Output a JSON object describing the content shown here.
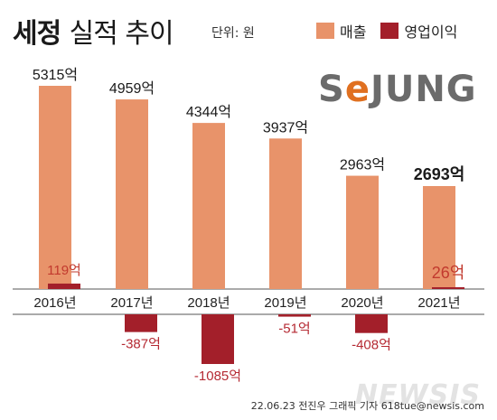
{
  "header": {
    "title_bold": "세정",
    "title_light": "실적 추이",
    "unit": "단위: 원"
  },
  "legend": [
    {
      "name": "매출",
      "color": "#e8936a"
    },
    {
      "name": "영업이익",
      "color": "#a31f2a"
    }
  ],
  "logo": {
    "text_before": "S",
    "mark": "e",
    "text_after": "JUNG"
  },
  "credit": "22.06.23 전진우 그래픽 기자 618tue@newsis.com",
  "watermark": "NEWSIS",
  "chart_data": {
    "type": "bar",
    "categories": [
      "2016년",
      "2017년",
      "2018년",
      "2019년",
      "2020년",
      "2021년"
    ],
    "series": [
      {
        "name": "매출",
        "color": "#e8936a",
        "values": [
          5315,
          4959,
          4344,
          3937,
          2963,
          2693
        ],
        "labels": [
          "5315억",
          "4959억",
          "4344억",
          "3937억",
          "2963억",
          "2693억"
        ]
      },
      {
        "name": "영업이익",
        "color": "#a31f2a",
        "values": [
          119,
          -387,
          -1085,
          -51,
          -408,
          26
        ],
        "labels": [
          "119억",
          "-387억",
          "-1085억",
          "-51억",
          "-408억",
          "26억"
        ]
      }
    ],
    "label_colors": {
      "revenue_text": "#1a1a1a",
      "profit_positive_text": "#c23a2e",
      "profit_negative_text": "#b52a33"
    }
  }
}
